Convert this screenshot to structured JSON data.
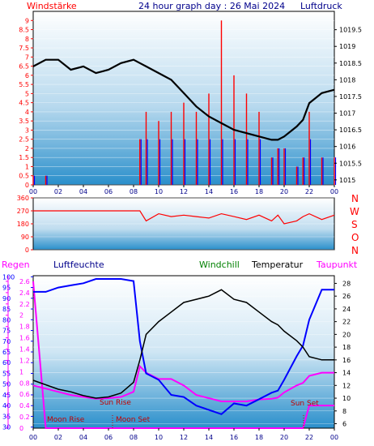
{
  "header": {
    "left_label": "Windstärke",
    "title": "24 hour graph day : 26 Mai 2024",
    "right_label": "Luftdruck"
  },
  "bottom_header": {
    "regen": "Regen",
    "luftfeuchte": "Luftfeuchte",
    "windchill": "Windchill",
    "temperatur": "Temperatur",
    "taupunkt": "Taupunkt"
  },
  "direction_labels": [
    "N",
    "W",
    "S",
    "O",
    "N"
  ],
  "annotations": {
    "moon_rise": "Moon Rise",
    "moon_set": "Moon Set",
    "sun_rise": "Sun Rise",
    "sun_set": "Sun Set"
  },
  "colors": {
    "wind": "#ff0000",
    "gust_blue": "#0000ff",
    "pressure": "#000000",
    "humidity": "#0000ff",
    "temperature": "#000000",
    "dewpoint": "#ff00ff",
    "windchill": "#008000",
    "rain_axis": "#ff00ff",
    "bg_top": "#ffffff",
    "bg_bottom": "#1e8bc8"
  },
  "chart_data": [
    {
      "type": "line",
      "x": [
        0,
        1,
        2,
        3,
        4,
        5,
        6,
        7,
        8,
        8.5,
        9,
        10,
        11,
        12,
        13,
        14,
        15,
        16,
        17,
        18,
        19,
        19.5,
        20,
        21,
        21.5,
        22,
        23,
        24
      ],
      "x_ticks": [
        "00",
        "02",
        "04",
        "06",
        "08",
        "10",
        "12",
        "14",
        "16",
        "18",
        "20",
        "22",
        "00"
      ],
      "left_axis": {
        "ticks": [
          "0",
          "0.5",
          "1",
          "1.5",
          "2",
          "2.5",
          "3",
          "3.5",
          "4",
          "4.5",
          "5",
          "5.5",
          "6",
          "6.5",
          "7",
          "7.5",
          "8",
          "8.5",
          "9"
        ],
        "ylim": [
          0,
          9.5
        ]
      },
      "right_axis": {
        "ticks": [
          "1015",
          "1015.5",
          "1016",
          "1016.5",
          "1017",
          "1017.5",
          "1018",
          "1018.5",
          "1019",
          "1019.5"
        ],
        "ylim": [
          1014.85,
          1020.05
        ]
      },
      "series": [
        {
          "name": "Luftdruck",
          "axis": "right",
          "values": [
            1018.4,
            1018.6,
            1018.6,
            1018.3,
            1018.4,
            1018.2,
            1018.3,
            1018.5,
            1018.6,
            1018.5,
            1018.4,
            1018.2,
            1018.0,
            1017.6,
            1017.2,
            1016.9,
            1016.7,
            1016.5,
            1016.4,
            1016.3,
            1016.2,
            1016.2,
            1016.3,
            1016.6,
            1016.8,
            1017.3,
            1017.6,
            1017.7
          ]
        },
        {
          "name": "Windstärke",
          "axis": "left",
          "values": [
            0.5,
            0.5,
            0,
            0,
            0,
            0,
            0,
            0,
            0,
            2.5,
            4,
            3.5,
            4,
            4.5,
            4,
            5,
            9,
            6,
            5,
            4,
            1.5,
            2,
            2,
            1,
            1.5,
            4,
            1.5,
            1.5
          ]
        }
      ]
    },
    {
      "type": "line",
      "x": [
        0,
        1,
        2,
        3,
        4,
        5,
        6,
        7,
        8,
        8.5,
        9,
        10,
        11,
        12,
        13,
        14,
        15,
        16,
        17,
        18,
        19,
        19.5,
        20,
        21,
        21.5,
        22,
        23,
        24
      ],
      "left_axis": {
        "ticks": [
          "0",
          "90",
          "180",
          "270",
          "360"
        ],
        "ylim": [
          0,
          360
        ]
      },
      "right_axis": {
        "ticks": [
          "N",
          "O",
          "S",
          "W",
          "N"
        ]
      },
      "series": [
        {
          "name": "Windrichtung",
          "values": [
            270,
            270,
            270,
            270,
            270,
            270,
            270,
            270,
            270,
            270,
            200,
            250,
            230,
            240,
            230,
            220,
            250,
            230,
            210,
            240,
            200,
            240,
            180,
            200,
            230,
            250,
            210,
            240
          ]
        }
      ]
    },
    {
      "type": "line",
      "x": [
        0,
        1,
        2,
        3,
        4,
        5,
        6,
        7,
        8,
        8.5,
        9,
        10,
        11,
        12,
        13,
        14,
        15,
        16,
        17,
        18,
        19,
        19.5,
        20,
        21,
        21.5,
        22,
        23,
        24
      ],
      "regen_axis": {
        "ticks": [
          "0",
          "0.2",
          "0.4",
          "0.6",
          "0.8",
          "1",
          "1.2",
          "1.4",
          "1.6",
          "1.8",
          "2",
          "2.2",
          "2.4",
          "2.6"
        ],
        "ylim": [
          0,
          2.7
        ]
      },
      "humidity_axis": {
        "ticks": [
          "30",
          "35",
          "40",
          "45",
          "50",
          "55",
          "60",
          "65",
          "70",
          "75",
          "80",
          "85",
          "90",
          "95",
          "100"
        ],
        "ylim": [
          29.5,
          100.5
        ]
      },
      "temp_axis": {
        "ticks": [
          "6",
          "8",
          "10",
          "12",
          "14",
          "16",
          "18",
          "20",
          "22",
          "24",
          "26",
          "28"
        ],
        "ylim": [
          5.3,
          29.2
        ]
      },
      "series": [
        {
          "name": "Luftfeuchte",
          "axis": "humidity",
          "values": [
            93,
            93,
            95,
            96,
            97,
            99,
            99,
            99,
            98,
            70,
            55,
            52,
            45,
            44,
            40,
            38,
            36,
            41,
            40,
            43,
            46,
            47,
            52,
            63,
            68,
            80,
            94,
            94
          ]
        },
        {
          "name": "Temperatur",
          "axis": "temp",
          "values": [
            12.8,
            12.1,
            11.4,
            11.0,
            10.4,
            10.0,
            10.2,
            10.8,
            12.5,
            16,
            20,
            22,
            23.5,
            25,
            25.5,
            26,
            27,
            25.5,
            25,
            23.5,
            22,
            21.5,
            20.5,
            19,
            18,
            16.5,
            16,
            16
          ]
        },
        {
          "name": "Taupunkt",
          "axis": "temp",
          "values": [
            12,
            11.5,
            11.0,
            10.5,
            10.2,
            9.9,
            10.0,
            10.2,
            11,
            15,
            14,
            13,
            13,
            12,
            10.5,
            10,
            9.5,
            9.5,
            9.5,
            9.8,
            9.9,
            10.1,
            10.9,
            12,
            12.4,
            13.5,
            14,
            14
          ]
        },
        {
          "name": "Windchill",
          "axis": "temp",
          "values": [
            12.8,
            12.1,
            11.4,
            11.0,
            10.4,
            10.0,
            10.2,
            10.8,
            12.5,
            16,
            20,
            22,
            23.5,
            25,
            25.5,
            26,
            27,
            25.5,
            25,
            23.5,
            22,
            21.5,
            20.5,
            19,
            18,
            16.5,
            16,
            16
          ]
        },
        {
          "name": "Regen",
          "axis": "regen",
          "values": [
            2.6,
            0,
            0,
            0,
            0,
            0,
            0,
            0,
            0,
            0,
            0,
            0,
            0,
            0,
            0,
            0,
            0,
            0,
            0,
            0,
            0,
            0,
            0,
            0,
            0,
            0.4,
            0.4,
            0.4
          ]
        }
      ]
    }
  ]
}
